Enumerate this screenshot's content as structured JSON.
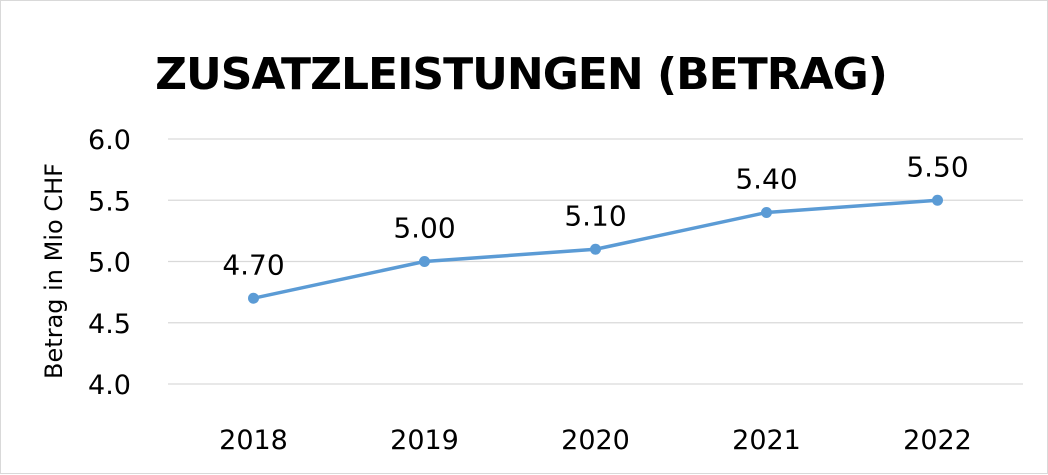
{
  "chart_data": {
    "type": "line",
    "title": "ZUSATZLEISTUNGEN (BETRAG)",
    "xlabel": "",
    "ylabel": "Betrag in Mio CHF",
    "categories": [
      "2018",
      "2019",
      "2020",
      "2021",
      "2022"
    ],
    "series": [
      {
        "values": [
          4.7,
          5.0,
          5.1,
          5.4,
          5.5
        ],
        "labels": [
          "4.70",
          "5.00",
          "5.10",
          "5.40",
          "5.50"
        ]
      }
    ],
    "ylim": [
      4.0,
      6.0
    ],
    "yticks": [
      "4.0",
      "4.5",
      "5.0",
      "5.5",
      "6.0"
    ],
    "grid": true,
    "legend": "none",
    "colors": {
      "line": "#5b9bd5",
      "grid": "#d9d9d9"
    }
  }
}
